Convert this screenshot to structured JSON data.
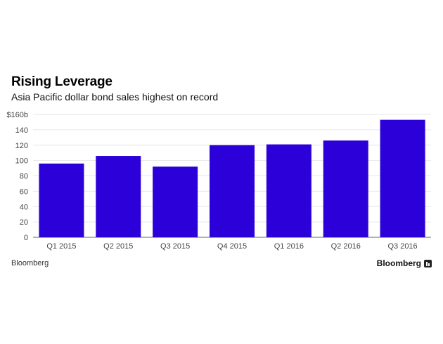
{
  "header": {
    "title": "Rising Leverage",
    "subtitle": "Asia Pacific dollar bond sales highest on record"
  },
  "footer": {
    "source": "Bloomberg",
    "logo_text": "Bloomberg",
    "logo_icon": "bloomberg-logo-icon"
  },
  "chart_data": {
    "type": "bar",
    "title": "Rising Leverage",
    "subtitle": "Asia Pacific dollar bond sales highest on record",
    "categories": [
      "Q1 2015",
      "Q2 2015",
      "Q3 2015",
      "Q4 2015",
      "Q1 2016",
      "Q2 2016",
      "Q3 2016"
    ],
    "values": [
      96,
      106,
      92,
      120,
      121,
      126,
      153
    ],
    "ylim": [
      0,
      160
    ],
    "yticks": [
      0,
      20,
      40,
      60,
      80,
      100,
      120,
      140,
      160
    ],
    "ytick_labels": [
      "0",
      "20",
      "40",
      "60",
      "80",
      "100",
      "120",
      "140",
      "$160b"
    ],
    "xlabel": "",
    "ylabel": "",
    "grid": true,
    "legend": false,
    "bar_color": "#2c00d8"
  }
}
